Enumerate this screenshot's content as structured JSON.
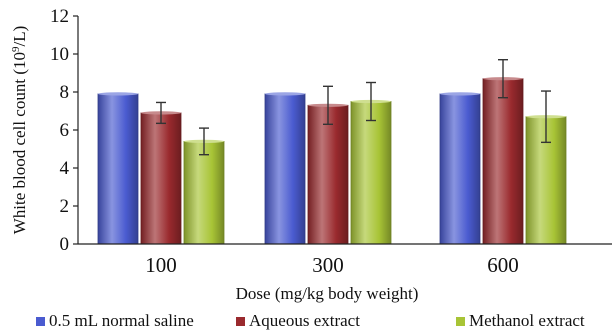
{
  "chart_data": {
    "type": "bar",
    "categories": [
      "100",
      "300",
      "600"
    ],
    "xlabel": "Dose (mg/kg body weight)",
    "ylabel": "White blood cell count (10",
    "ylabel_sup": "9",
    "ylabel_tail": "/L)",
    "ylim": [
      0,
      12
    ],
    "yticks": [
      "0",
      "2",
      "4",
      "6",
      "8",
      "10",
      "12"
    ],
    "error_bars": true,
    "legend_position": "bottom",
    "series": [
      {
        "name": "0.5 mL normal saline",
        "color": "#4a5bd0",
        "values": [
          7.9,
          7.9,
          7.9
        ],
        "errors": [
          0.05,
          0.05,
          0.05
        ]
      },
      {
        "name": "Aqueous extract",
        "color": "#9a2a2e",
        "values": [
          6.9,
          7.3,
          8.7
        ],
        "errors": [
          0.55,
          1.0,
          1.0
        ]
      },
      {
        "name": "Methanol extract",
        "color": "#a8c436",
        "values": [
          5.4,
          7.5,
          6.7
        ],
        "errors": [
          0.7,
          1.0,
          1.35
        ]
      }
    ]
  }
}
